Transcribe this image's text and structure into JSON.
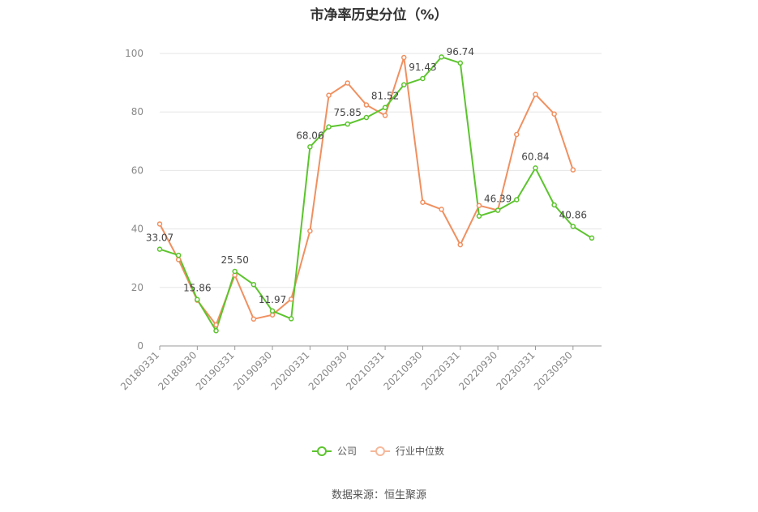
{
  "chart_data": {
    "type": "line",
    "title": "市净率历史分位（%）",
    "xlabel": "",
    "ylabel": "",
    "ylim": [
      0,
      100
    ],
    "yticks": [
      0,
      20,
      40,
      60,
      80,
      100
    ],
    "x": [
      "20180331",
      "20180630",
      "20180930",
      "20181231",
      "20190331",
      "20190630",
      "20190930",
      "20191231",
      "20200331",
      "20200630",
      "20200930",
      "20201231",
      "20210331",
      "20210630",
      "20210930",
      "20211231",
      "20220331",
      "20220630",
      "20220930",
      "20221231",
      "20230331",
      "20230630",
      "20230930",
      "20231231"
    ],
    "xtick_labels": [
      "20180331",
      "20180930",
      "20190331",
      "20190930",
      "20200331",
      "20200930",
      "20210331",
      "20210930",
      "20220331",
      "20220930",
      "20230331",
      "20230930"
    ],
    "series": [
      {
        "name": "公司",
        "color": "#5cc42d",
        "values": [
          33.07,
          31.0,
          15.86,
          5.2,
          25.5,
          21.0,
          11.97,
          9.3,
          68.06,
          74.9,
          75.85,
          78.1,
          81.52,
          89.3,
          91.43,
          98.8,
          96.74,
          44.4,
          46.39,
          50.0,
          60.84,
          48.2,
          40.86,
          36.9
        ]
      },
      {
        "name": "行业中位数",
        "color": "#f09060",
        "values": [
          41.7,
          29.5,
          15.6,
          7.2,
          24.2,
          9.2,
          10.6,
          16.0,
          39.3,
          85.7,
          89.9,
          82.4,
          78.8,
          98.6,
          49.1,
          46.7,
          34.6,
          48.0,
          46.4,
          72.3,
          86.0,
          79.3,
          60.2,
          null
        ]
      }
    ],
    "data_labels": [
      {
        "series": 0,
        "index": 0,
        "text": "33.07"
      },
      {
        "series": 0,
        "index": 2,
        "text": "15.86"
      },
      {
        "series": 0,
        "index": 4,
        "text": "25.50"
      },
      {
        "series": 0,
        "index": 6,
        "text": "11.97"
      },
      {
        "series": 0,
        "index": 8,
        "text": "68.06"
      },
      {
        "series": 0,
        "index": 10,
        "text": "75.85"
      },
      {
        "series": 0,
        "index": 12,
        "text": "81.52"
      },
      {
        "series": 0,
        "index": 14,
        "text": "91.43"
      },
      {
        "series": 0,
        "index": 16,
        "text": "96.74"
      },
      {
        "series": 0,
        "index": 18,
        "text": "46.39"
      },
      {
        "series": 0,
        "index": 20,
        "text": "60.84"
      },
      {
        "series": 0,
        "index": 22,
        "text": "40.86"
      }
    ],
    "legend_position": "bottom-center",
    "grid": true
  },
  "source": "数据来源：恒生聚源"
}
